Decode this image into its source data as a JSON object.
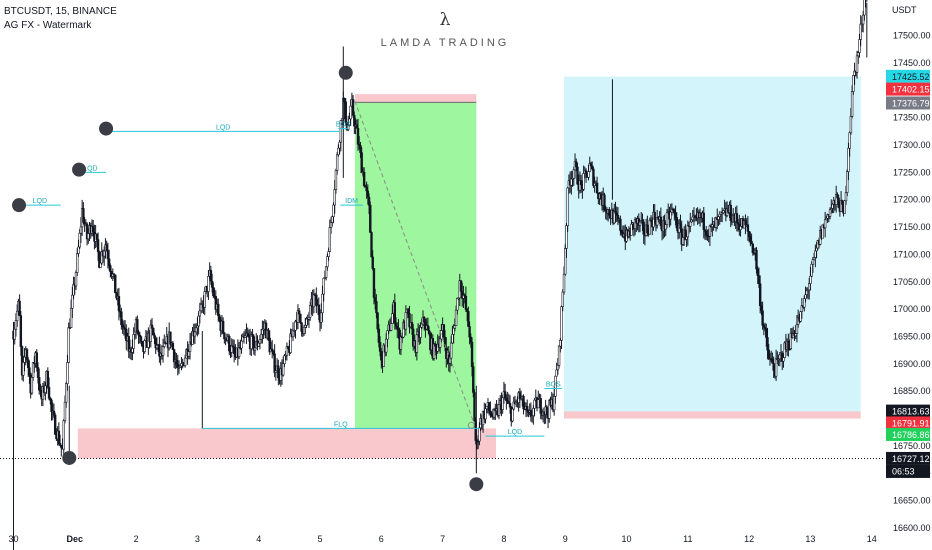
{
  "header": {
    "symbol_line": "BTCUSDT, 15, BINANCE",
    "indicator_line": "AG FX - Watermark"
  },
  "watermark": {
    "symbol": "λ",
    "name": "LAMDA TRADING"
  },
  "axis": {
    "unit": "USDT"
  },
  "colors": {
    "candle": "#131722",
    "liquidity_line": "#26c6da",
    "zone_green": "#9ef79e",
    "zone_red": "#f8c8cc",
    "zone_blue": "#d3f4fb",
    "marker": "#3a3d45",
    "badge_cyan": "#26d7e6",
    "badge_red": "#f2313e",
    "badge_grey": "#787b86",
    "badge_black": "#131722",
    "badge_green": "#22d05c"
  },
  "chart_data": {
    "type": "candlestick",
    "x_ticks": [
      {
        "label": "30",
        "x": 0
      },
      {
        "label": "Dec",
        "x": 1
      },
      {
        "label": "2",
        "x": 2
      },
      {
        "label": "3",
        "x": 3
      },
      {
        "label": "4",
        "x": 4
      },
      {
        "label": "5",
        "x": 5
      },
      {
        "label": "6",
        "x": 6
      },
      {
        "label": "7",
        "x": 7
      },
      {
        "label": "8",
        "x": 8
      },
      {
        "label": "9",
        "x": 9
      },
      {
        "label": "10",
        "x": 10
      },
      {
        "label": "11",
        "x": 11
      },
      {
        "label": "12",
        "x": 12
      },
      {
        "label": "13",
        "x": 13
      },
      {
        "label": "14",
        "x": 14
      }
    ],
    "y_ticks": [
      16600,
      16650,
      16700,
      16750,
      16800,
      16850,
      16900,
      16950,
      17000,
      17050,
      17100,
      17150,
      17200,
      17250,
      17300,
      17350,
      17400,
      17450,
      17500
    ],
    "xlim": [
      -0.22,
      14.2
    ],
    "ylim": [
      16600,
      17565
    ],
    "price_path": [
      [
        0.0,
        16960
      ],
      [
        0.05,
        16990
      ],
      [
        0.09,
        17010
      ],
      [
        0.14,
        16870
      ],
      [
        0.2,
        16930
      ],
      [
        0.28,
        16860
      ],
      [
        0.36,
        16920
      ],
      [
        0.45,
        16830
      ],
      [
        0.55,
        16880
      ],
      [
        0.62,
        16810
      ],
      [
        0.72,
        16770
      ],
      [
        0.8,
        16740
      ],
      [
        0.9,
        16960
      ],
      [
        1.0,
        17050
      ],
      [
        1.07,
        17120
      ],
      [
        1.12,
        17180
      ],
      [
        1.2,
        17130
      ],
      [
        1.28,
        17160
      ],
      [
        1.4,
        17090
      ],
      [
        1.5,
        17120
      ],
      [
        1.62,
        17060
      ],
      [
        1.75,
        16980
      ],
      [
        1.9,
        16920
      ],
      [
        2.0,
        16970
      ],
      [
        2.1,
        16920
      ],
      [
        2.25,
        16960
      ],
      [
        2.4,
        16910
      ],
      [
        2.55,
        16950
      ],
      [
        2.7,
        16880
      ],
      [
        2.9,
        16950
      ],
      [
        3.05,
        16990
      ],
      [
        3.2,
        17060
      ],
      [
        3.35,
        16980
      ],
      [
        3.5,
        16940
      ],
      [
        3.62,
        16910
      ],
      [
        3.8,
        16950
      ],
      [
        3.95,
        16930
      ],
      [
        4.1,
        16970
      ],
      [
        4.25,
        16900
      ],
      [
        4.35,
        16880
      ],
      [
        4.5,
        16930
      ],
      [
        4.62,
        16990
      ],
      [
        4.75,
        16960
      ],
      [
        4.9,
        17020
      ],
      [
        5.0,
        16990
      ],
      [
        5.1,
        17080
      ],
      [
        5.2,
        17180
      ],
      [
        5.3,
        17300
      ],
      [
        5.38,
        17380
      ],
      [
        5.45,
        17330
      ],
      [
        5.52,
        17370
      ],
      [
        5.6,
        17320
      ],
      [
        5.7,
        17250
      ],
      [
        5.8,
        17180
      ],
      [
        5.9,
        17000
      ],
      [
        6.0,
        16900
      ],
      [
        6.1,
        16950
      ],
      [
        6.2,
        17000
      ],
      [
        6.3,
        16940
      ],
      [
        6.42,
        16990
      ],
      [
        6.55,
        16930
      ],
      [
        6.7,
        16980
      ],
      [
        6.85,
        16920
      ],
      [
        7.0,
        16960
      ],
      [
        7.1,
        16900
      ],
      [
        7.2,
        16980
      ],
      [
        7.28,
        17050
      ],
      [
        7.35,
        17020
      ],
      [
        7.45,
        16950
      ],
      [
        7.52,
        16800
      ],
      [
        7.55,
        16740
      ],
      [
        7.6,
        16790
      ],
      [
        7.72,
        16820
      ],
      [
        7.85,
        16800
      ],
      [
        8.0,
        16840
      ],
      [
        8.12,
        16810
      ],
      [
        8.25,
        16840
      ],
      [
        8.4,
        16800
      ],
      [
        8.55,
        16830
      ],
      [
        8.7,
        16810
      ],
      [
        8.8,
        16830
      ],
      [
        8.9,
        16920
      ],
      [
        8.98,
        17070
      ],
      [
        9.05,
        17230
      ],
      [
        9.15,
        17260
      ],
      [
        9.25,
        17220
      ],
      [
        9.4,
        17260
      ],
      [
        9.55,
        17210
      ],
      [
        9.7,
        17180
      ],
      [
        9.85,
        17160
      ],
      [
        10.0,
        17130
      ],
      [
        10.15,
        17160
      ],
      [
        10.3,
        17140
      ],
      [
        10.45,
        17170
      ],
      [
        10.6,
        17150
      ],
      [
        10.75,
        17180
      ],
      [
        10.9,
        17130
      ],
      [
        11.05,
        17150
      ],
      [
        11.2,
        17170
      ],
      [
        11.35,
        17140
      ],
      [
        11.5,
        17160
      ],
      [
        11.65,
        17180
      ],
      [
        11.8,
        17160
      ],
      [
        11.95,
        17150
      ],
      [
        12.1,
        17100
      ],
      [
        12.22,
        16980
      ],
      [
        12.32,
        16910
      ],
      [
        12.42,
        16890
      ],
      [
        12.55,
        16920
      ],
      [
        12.7,
        16950
      ],
      [
        12.85,
        16990
      ],
      [
        13.0,
        17060
      ],
      [
        13.15,
        17130
      ],
      [
        13.3,
        17180
      ],
      [
        13.45,
        17200
      ],
      [
        13.55,
        17170
      ],
      [
        13.62,
        17300
      ],
      [
        13.7,
        17420
      ],
      [
        13.78,
        17470
      ],
      [
        13.85,
        17540
      ],
      [
        13.92,
        17600
      ]
    ],
    "liquidity_lines": [
      {
        "label": "LQD",
        "x0": 0.09,
        "x1": 0.77,
        "y": 17190
      },
      {
        "label": "LQD",
        "x0": 1.0,
        "x1": 1.51,
        "y": 17250
      },
      {
        "label": "LQD",
        "x0": 1.51,
        "x1": 5.33,
        "y": 17325
      },
      {
        "label": "BOS",
        "x0": 5.3,
        "x1": 5.46,
        "y": 17330
      },
      {
        "label": "IDM",
        "x0": 5.33,
        "x1": 5.7,
        "y": 17190
      },
      {
        "label": "FLQ",
        "x0": 3.08,
        "x1": 7.6,
        "y": 16782
      },
      {
        "label": "LQD",
        "x0": 7.7,
        "x1": 8.66,
        "y": 16768
      },
      {
        "label": "BOS",
        "x0": 8.66,
        "x1": 8.95,
        "y": 16855
      }
    ],
    "zones": [
      {
        "x0": 5.57,
        "x1": 7.55,
        "y0": 16782,
        "y1": 17378,
        "color": "green"
      },
      {
        "x0": 5.57,
        "x1": 7.55,
        "y0": 17378,
        "y1": 17393,
        "color": "red"
      },
      {
        "x0": 1.05,
        "x1": 7.87,
        "y0": 16727,
        "y1": 16782,
        "color": "red"
      },
      {
        "x0": 8.98,
        "x1": 13.82,
        "y0": 16813,
        "y1": 17425,
        "color": "blue"
      },
      {
        "x0": 8.98,
        "x1": 13.82,
        "y0": 16800,
        "y1": 16813,
        "color": "red"
      }
    ],
    "stop_line": {
      "x0": 5.57,
      "x1": 7.55,
      "y": 17378
    },
    "trend_line": {
      "x0": 5.57,
      "y0": 17380,
      "x1": 7.5,
      "y1": 16795
    },
    "current_line": {
      "y": 16727.12
    },
    "swing_markers": [
      {
        "x": 0.09,
        "y": 17190
      },
      {
        "x": 0.91,
        "y": 16728
      },
      {
        "x": 1.07,
        "y": 17255
      },
      {
        "x": 1.51,
        "y": 17330
      },
      {
        "x": 5.42,
        "y": 17432
      },
      {
        "x": 7.55,
        "y": 16680
      }
    ],
    "price_badges": [
      {
        "text": "17425.52",
        "y": 17425.52,
        "color": "cyan"
      },
      {
        "text": "17402.15",
        "y": 17402.15,
        "color": "red"
      },
      {
        "text": "17376.79",
        "y": 17376.79,
        "color": "grey"
      },
      {
        "text": "16813.63",
        "y": 16813.63,
        "color": "black"
      },
      {
        "text": "16791.91",
        "y": 16791.91,
        "color": "red"
      },
      {
        "text": "16786.86",
        "y": 16771,
        "color": "green"
      },
      {
        "text": "16727.12",
        "y": 16727.12,
        "color": "black"
      }
    ],
    "countdown": "06:53"
  }
}
